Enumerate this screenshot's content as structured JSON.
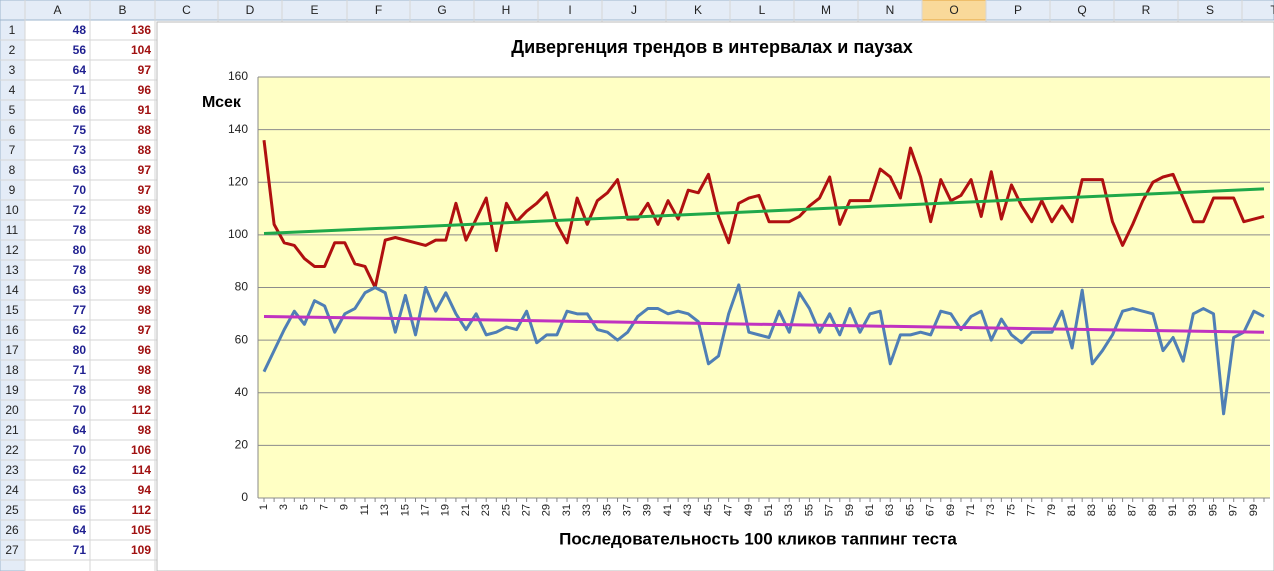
{
  "sheet": {
    "columns": [
      "A",
      "B",
      "C",
      "D",
      "E",
      "F",
      "G",
      "H",
      "I",
      "J",
      "K",
      "L",
      "M",
      "N",
      "O",
      "P",
      "Q",
      "R",
      "S",
      "T"
    ],
    "rows": [
      1,
      2,
      3,
      4,
      5,
      6,
      7,
      8,
      9,
      10,
      11,
      12,
      13,
      14,
      15,
      16,
      17,
      18,
      19,
      20,
      21,
      22,
      23,
      24,
      25,
      26,
      27
    ],
    "col_a": [
      48,
      56,
      64,
      71,
      66,
      75,
      73,
      63,
      70,
      72,
      78,
      80,
      78,
      63,
      77,
      62,
      80,
      71,
      78,
      70,
      64,
      70,
      62,
      63,
      65,
      64,
      71
    ],
    "col_b": [
      136,
      104,
      97,
      96,
      91,
      88,
      88,
      97,
      97,
      89,
      88,
      80,
      98,
      99,
      98,
      97,
      96,
      98,
      98,
      112,
      98,
      106,
      114,
      94,
      112,
      105,
      109
    ]
  },
  "chart_data": {
    "type": "line",
    "title": "Дивергенция трендов в интервалах и паузах",
    "y_label": "Мсек",
    "x_label": "Последовательность  100 кликов таппинг теста",
    "categories": [
      1,
      null,
      3,
      null,
      5,
      null,
      7,
      null,
      9,
      null,
      11,
      null,
      13,
      null,
      15,
      null,
      17,
      null,
      19,
      null,
      21,
      null,
      23,
      null,
      25,
      null,
      27,
      null,
      29,
      null,
      31,
      null,
      33,
      null,
      35,
      null,
      37,
      null,
      39,
      null,
      41,
      null,
      43,
      null,
      45,
      null,
      47,
      null,
      49,
      null,
      51,
      null,
      53,
      null,
      55,
      null,
      57,
      null,
      59,
      null,
      61,
      null,
      63,
      null,
      65,
      null,
      67,
      null,
      69,
      null,
      71,
      null,
      73,
      null,
      75,
      null,
      77,
      null,
      79,
      null,
      81,
      null,
      83,
      null,
      85,
      null,
      87,
      null,
      89,
      null,
      91,
      null,
      93,
      null,
      95,
      null,
      97,
      null,
      99,
      null
    ],
    "series": [
      {
        "color": "#b01010",
        "values": [
          136,
          104,
          97,
          96,
          91,
          88,
          88,
          97,
          97,
          89,
          88,
          80,
          98,
          99,
          98,
          97,
          96,
          98,
          98,
          112,
          98,
          106,
          114,
          94,
          112,
          105,
          109,
          112,
          116,
          104,
          97,
          114,
          104,
          113,
          116,
          121,
          106,
          106,
          112,
          104,
          113,
          106,
          117,
          116,
          123,
          107,
          97,
          112,
          114,
          115,
          105,
          105,
          105,
          107,
          111,
          114,
          122,
          104,
          113,
          113,
          113,
          125,
          122,
          114,
          133,
          122,
          105,
          121,
          113,
          115,
          121,
          107,
          124,
          106,
          119,
          111,
          105,
          113,
          105,
          111,
          105,
          121,
          121,
          121,
          105,
          96,
          104,
          113,
          120,
          122,
          123,
          114,
          105,
          105,
          114,
          114,
          114,
          105,
          106,
          107
        ]
      },
      {
        "color": "#4f7fb5",
        "values": [
          48,
          56,
          64,
          71,
          66,
          75,
          73,
          63,
          70,
          72,
          78,
          80,
          78,
          63,
          77,
          62,
          80,
          71,
          78,
          70,
          64,
          70,
          62,
          63,
          65,
          64,
          71,
          59,
          62,
          62,
          71,
          70,
          70,
          64,
          63,
          60,
          63,
          69,
          72,
          72,
          70,
          71,
          70,
          67,
          51,
          54,
          70,
          81,
          63,
          62,
          61,
          71,
          63,
          78,
          72,
          63,
          70,
          62,
          72,
          63,
          70,
          71,
          51,
          62,
          62,
          63,
          62,
          71,
          70,
          64,
          69,
          71,
          60,
          68,
          62,
          59,
          63,
          63,
          63,
          71,
          57,
          79,
          51,
          56,
          62,
          71,
          72,
          71,
          70,
          56,
          61,
          52,
          70,
          72,
          70,
          32,
          61,
          63,
          71,
          69
        ]
      }
    ],
    "trendlines": [
      {
        "color": "#1fa84a",
        "values": [
          100.5,
          117.5
        ]
      },
      {
        "color": "#c032c0",
        "values": [
          69,
          63
        ]
      }
    ],
    "ylim": [
      0,
      160
    ],
    "yticks": [
      0,
      20,
      40,
      60,
      80,
      100,
      120,
      140,
      160
    ],
    "grid": true
  }
}
